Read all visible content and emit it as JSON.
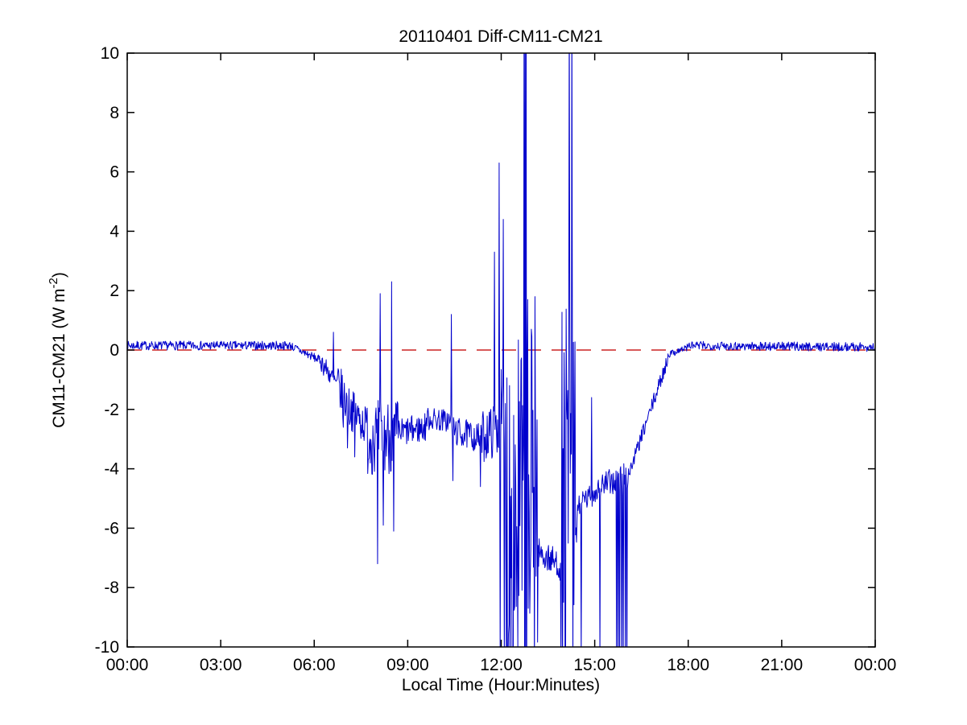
{
  "figure": {
    "background": "#ffffff"
  },
  "chart_data": {
    "type": "line",
    "title": "20110401 Diff-CM11-CM21",
    "xlabel": "Local Time (Hour:Minutes)",
    "ylabel": "CM11-CM21 (W m-2)",
    "ylabel_parts": {
      "prefix": "CM11-CM21 (W m",
      "superscript": "-2",
      "suffix": ")"
    },
    "grid": false,
    "legend": "none",
    "xlim_hours": [
      0,
      24
    ],
    "ylim": [
      -10,
      10
    ],
    "x_tick_hours": [
      0,
      3,
      6,
      9,
      12,
      15,
      18,
      21,
      24
    ],
    "x_tick_labels": [
      "00:00",
      "03:00",
      "06:00",
      "09:00",
      "12:00",
      "15:00",
      "18:00",
      "21:00",
      "00:00"
    ],
    "y_tick_values": [
      -10,
      -8,
      -6,
      -4,
      -2,
      0,
      2,
      4,
      6,
      8,
      10
    ],
    "y_tick_labels": [
      "-10",
      "-8",
      "-6",
      "-4",
      "-2",
      "0",
      "2",
      "4",
      "6",
      "8",
      "10"
    ],
    "series": [
      {
        "name": "CM11-CM21 difference",
        "color": "#0000CC",
        "style": "solid",
        "width": 1
      }
    ],
    "reference_line": {
      "y": 0,
      "color": "#CC2222",
      "style": "dashed",
      "dash": [
        18,
        13
      ],
      "width": 1.5
    },
    "sampling_minutes": 1,
    "generation": {
      "comment": "Piecewise description of the 1-min series read off the plot: segments are [t_start_h, t_end_h, mean_start, mean_end, noise_amplitude]; spikes are [t_h, value] single-sample excursions. Values beyond +/-10 are clipped off-scale exactly as in the figure.",
      "segments": [
        [
          0.0,
          5.3,
          0.15,
          0.15,
          0.15
        ],
        [
          5.3,
          6.2,
          0.1,
          -0.35,
          0.15
        ],
        [
          6.2,
          6.75,
          -0.35,
          -1.2,
          0.35
        ],
        [
          6.75,
          7.1,
          -1.2,
          -1.9,
          0.8
        ],
        [
          7.1,
          7.7,
          -1.9,
          -2.6,
          0.7
        ],
        [
          7.7,
          8.7,
          -2.9,
          -2.9,
          1.3
        ],
        [
          8.7,
          9.6,
          -2.8,
          -2.6,
          0.5
        ],
        [
          9.6,
          10.4,
          -2.3,
          -2.4,
          0.4
        ],
        [
          10.4,
          11.4,
          -2.7,
          -3.0,
          0.5
        ],
        [
          11.4,
          12.0,
          -2.9,
          -2.6,
          0.9
        ],
        [
          12.0,
          12.15,
          -2.8,
          -3.0,
          2.2
        ],
        [
          12.15,
          13.17,
          -5.5,
          -5.5,
          7.0
        ],
        [
          13.17,
          13.95,
          -6.8,
          -7.3,
          0.5
        ],
        [
          13.95,
          14.45,
          -5.5,
          -5.5,
          7.0
        ],
        [
          14.45,
          15.1,
          -5.3,
          -4.7,
          0.4
        ],
        [
          15.1,
          15.68,
          -4.6,
          -4.4,
          0.45
        ],
        [
          15.68,
          16.12,
          -4.5,
          -4.2,
          0.6
        ],
        [
          16.12,
          17.35,
          -4.1,
          -0.3,
          0.25
        ],
        [
          17.35,
          18.0,
          -0.15,
          0.1,
          0.12
        ],
        [
          18.0,
          24.0,
          0.15,
          0.1,
          0.15
        ]
      ],
      "spikes": [
        [
          6.62,
          0.6
        ],
        [
          6.93,
          -2.6
        ],
        [
          7.06,
          -3.3
        ],
        [
          7.3,
          -3.6
        ],
        [
          8.03,
          -7.2
        ],
        [
          8.12,
          1.9
        ],
        [
          8.22,
          -5.9
        ],
        [
          8.48,
          2.3
        ],
        [
          8.55,
          -6.1
        ],
        [
          10.4,
          1.2
        ],
        [
          10.45,
          -4.4
        ],
        [
          11.33,
          -4.6
        ],
        [
          11.78,
          3.3
        ],
        [
          11.93,
          6.3
        ],
        [
          11.97,
          -10.6
        ],
        [
          12.06,
          4.4
        ],
        [
          12.1,
          -10.8
        ],
        [
          12.73,
          12
        ],
        [
          12.75,
          -12
        ],
        [
          12.77,
          12
        ],
        [
          12.78,
          -12
        ],
        [
          12.8,
          12
        ],
        [
          12.82,
          -12
        ],
        [
          12.85,
          1.7
        ],
        [
          13.08,
          1.8
        ],
        [
          13.92,
          -10.5
        ],
        [
          14.18,
          12
        ],
        [
          14.2,
          1.5
        ],
        [
          14.27,
          12
        ],
        [
          14.3,
          -11
        ],
        [
          14.57,
          -10.4
        ],
        [
          14.9,
          -1.6
        ],
        [
          15.16,
          -10.5
        ],
        [
          15.7,
          -11
        ],
        [
          15.75,
          -11.5
        ],
        [
          15.8,
          -10.8
        ],
        [
          15.86,
          -11.2
        ],
        [
          15.92,
          -10.6
        ],
        [
          15.98,
          -11
        ],
        [
          16.04,
          -10.8
        ]
      ]
    }
  },
  "colors": {
    "axis": "#000000",
    "series_blue": "#0000CC",
    "reference_red": "#CC2222",
    "background": "#FFFFFF"
  }
}
